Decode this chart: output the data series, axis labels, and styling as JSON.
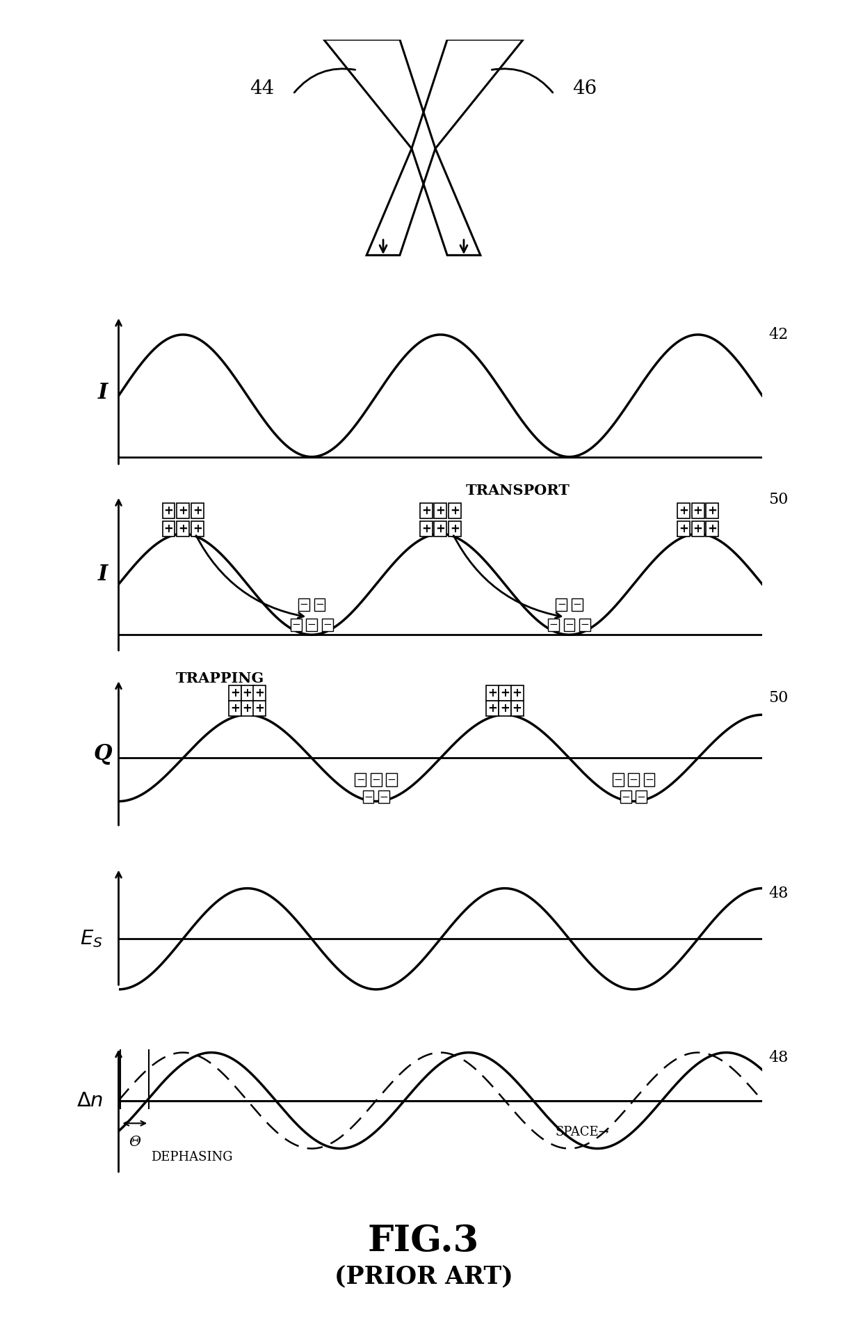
{
  "bg_color": "#ffffff",
  "fig_title": "FIG.3",
  "fig_subtitle": "(PRIOR ART)",
  "ref_42": "42",
  "ref_44": "44",
  "ref_46": "46",
  "ref_48": "48",
  "ref_50": "50",
  "label_I": "I",
  "label_Q": "Q",
  "label_Es": "E_S",
  "label_Dn": "Δn",
  "label_transport": "TRANSPORT",
  "label_trapping": "TRAPPING",
  "label_dephasing": "DEPHASING",
  "label_space": "SPACE",
  "label_theta": "Θ",
  "n_pts": 2000
}
